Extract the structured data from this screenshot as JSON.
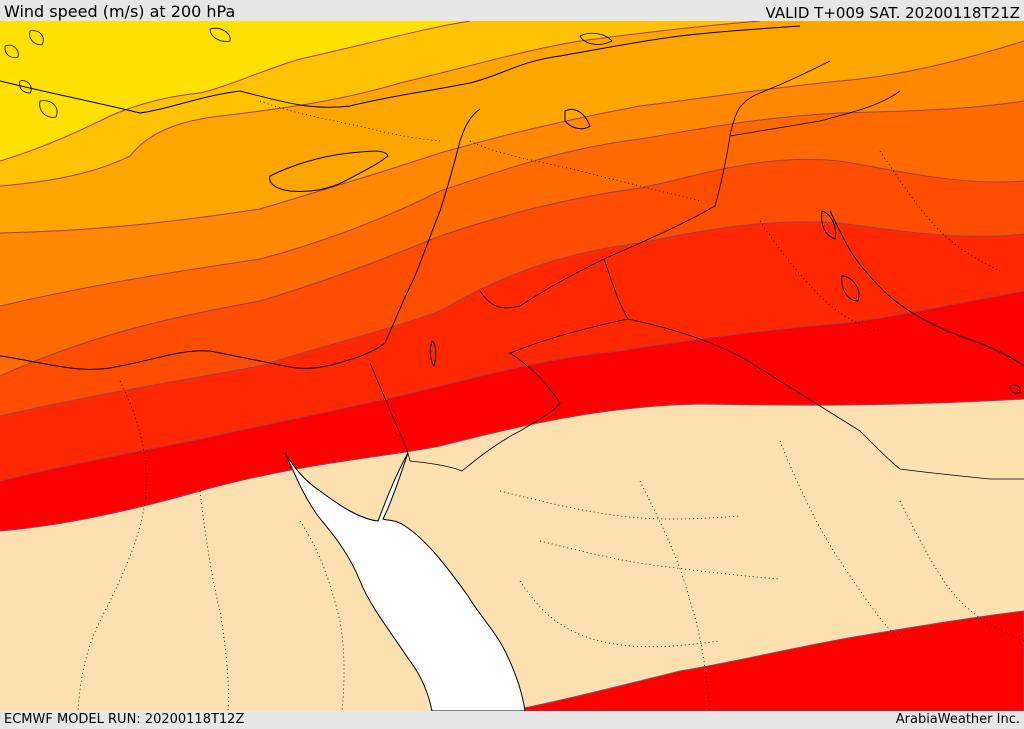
{
  "header": {
    "title": "Wind speed (m/s) at 200 hPa",
    "valid_time": "VALID T+009 SAT. 20200118T21Z"
  },
  "footer": {
    "model_run": "ECMWF MODEL RUN: 20200118T12Z",
    "credit": "ArabiaWeather Inc."
  },
  "map": {
    "region": "Eastern Mediterranean, Levant, Arabian Peninsula, Egypt",
    "field": "wind speed",
    "level": "200 hPa",
    "colors": {
      "background_calm": "#fde0b0",
      "band_1": "#ffe000",
      "band_2": "#ffc200",
      "band_3": "#ffa500",
      "band_4": "#ff8800",
      "band_5": "#ff6a00",
      "band_6": "#ff4d00",
      "band_7": "#ff2800",
      "band_8": "#ff0000",
      "sea_mask": "#ffffff",
      "contour_line": "#9a4060",
      "coastline": "#000000"
    }
  }
}
